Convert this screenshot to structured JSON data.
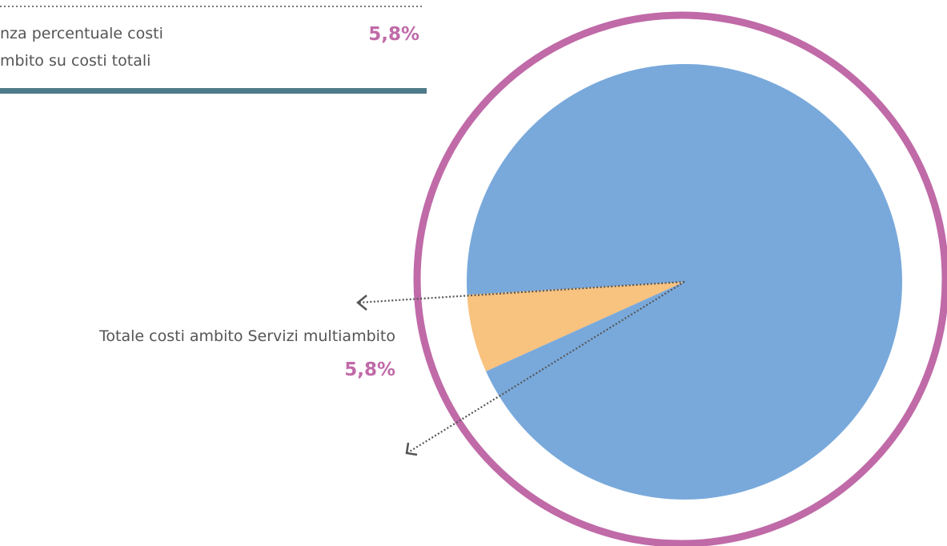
{
  "summary": {
    "label_lines": [
      "nza percentuale costi",
      "mbito su costi totali"
    ],
    "value_label": "5,8%"
  },
  "chart_data": {
    "type": "pie",
    "categories": [
      "Totale costi ambito Servizi multiambito",
      null
    ],
    "values": [
      5.8,
      94.2
    ],
    "value_labels": [
      "5,8%",
      null
    ],
    "colors": [
      "#f8c27f",
      "#79a9db"
    ]
  }
}
